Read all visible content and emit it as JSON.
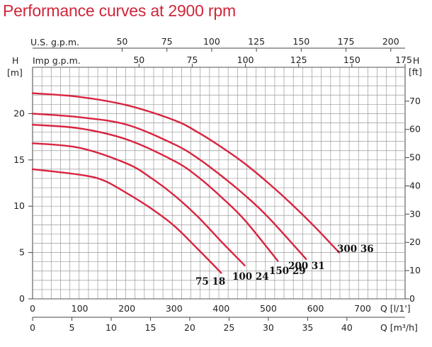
{
  "title": "Performance curves at 2900 rpm",
  "chart_data": {
    "type": "line",
    "title": "Performance curves at 2900 rpm",
    "y_left": {
      "label": "H",
      "unit": "[m]",
      "range": [
        0,
        25
      ],
      "ticks": [
        0,
        5,
        10,
        15,
        20
      ]
    },
    "y_right": {
      "label": "H",
      "unit": "[ft]",
      "range": [
        0,
        82
      ],
      "ticks": [
        0,
        10,
        20,
        30,
        40,
        50,
        60,
        70
      ]
    },
    "x_top_usgpm": {
      "label": "U.S. g.p.m.",
      "range": [
        0,
        208
      ],
      "ticks": [
        50,
        75,
        100,
        125,
        150,
        175,
        200
      ]
    },
    "x_top_impgpm": {
      "label": "Imp g.p.m.",
      "range": [
        0,
        175
      ],
      "ticks": [
        50,
        75,
        100,
        125,
        150,
        175
      ]
    },
    "x_bottom_lmin": {
      "label": "Q [l/1']",
      "range": [
        0,
        790
      ],
      "ticks": [
        0,
        100,
        200,
        300,
        400,
        500,
        600,
        700
      ]
    },
    "x_bottom_m3h": {
      "label": "Q [m³/h]",
      "range": [
        0,
        47.4
      ],
      "ticks": [
        0,
        5,
        10,
        15,
        20,
        25,
        30,
        35,
        40
      ]
    },
    "grid": true,
    "line_color": "#d9243f",
    "series": [
      {
        "name": "75 18",
        "x": [
          0,
          100,
          150,
          200,
          250,
          300,
          350,
          400
        ],
        "y": [
          14.0,
          13.4,
          12.8,
          11.4,
          9.8,
          7.9,
          5.4,
          2.8
        ]
      },
      {
        "name": "100 24",
        "x": [
          0,
          100,
          200,
          250,
          300,
          350,
          400,
          450
        ],
        "y": [
          16.8,
          16.3,
          14.6,
          13.1,
          11.2,
          8.9,
          6.2,
          3.6
        ]
      },
      {
        "name": "150 29",
        "x": [
          0,
          100,
          200,
          300,
          350,
          400,
          450,
          520
        ],
        "y": [
          18.8,
          18.4,
          17.2,
          14.9,
          13.2,
          11.0,
          8.5,
          4.1
        ]
      },
      {
        "name": "200 31",
        "x": [
          0,
          100,
          200,
          300,
          350,
          400,
          450,
          500,
          580
        ],
        "y": [
          20.0,
          19.6,
          18.8,
          16.7,
          15.2,
          13.3,
          11.2,
          8.8,
          4.3
        ]
      },
      {
        "name": "300 36",
        "x": [
          0,
          100,
          200,
          300,
          350,
          400,
          450,
          500,
          550,
          600,
          650
        ],
        "y": [
          22.2,
          21.8,
          20.9,
          19.3,
          18.0,
          16.4,
          14.6,
          12.5,
          10.2,
          7.7,
          5.0
        ]
      }
    ],
    "curve_labels": [
      "75 18",
      "100 24",
      "150 29",
      "200 31",
      "300 36"
    ]
  }
}
